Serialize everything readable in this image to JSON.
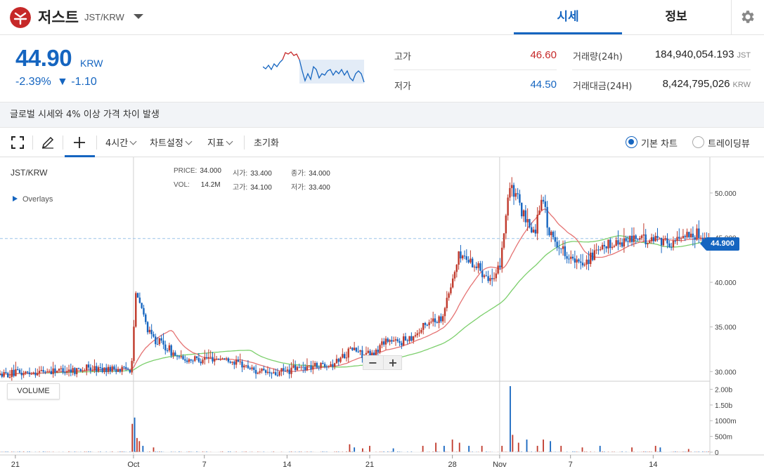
{
  "header": {
    "coin_name": "저스트",
    "pair": "JST/KRW",
    "tabs": [
      {
        "label": "시세",
        "active": true
      },
      {
        "label": "정보",
        "active": false
      }
    ]
  },
  "summary": {
    "price": "44.90",
    "unit": "KRW",
    "change_rate": "-2.39%",
    "change_amount": "▼ -1.10",
    "high_label": "고가",
    "high_value": "46.60",
    "low_label": "저가",
    "low_value": "44.50",
    "volume_label": "거래량(24h)",
    "volume_value": "184,940,054.193",
    "volume_unit": "JST",
    "trade_value_label": "거래대금(24H)",
    "trade_value_value": "8,424,795,026",
    "trade_value_unit": "KRW"
  },
  "notice": "글로벌 시세와 4% 이상 가격 차이 발생",
  "toolbar": {
    "interval": "4시간",
    "chart_settings": "차트설정",
    "indicators": "지표",
    "reset": "초기화",
    "basic_chart": "기본 차트",
    "tradingview": "트레이딩뷰"
  },
  "chart": {
    "pair": "JST/KRW",
    "overlays": "Overlays",
    "ohlc": {
      "price_label": "PRICE:",
      "price": "34.000",
      "open_label": "시가:",
      "open": "33.400",
      "close_label": "종가:",
      "close": "34.000",
      "vol_label": "VOL:",
      "vol": "14.2M",
      "high_label": "고가:",
      "high": "34.100",
      "low_label": "저가:",
      "low": "33.400"
    },
    "volume_button": "VOLUME",
    "zoom_minus": "−",
    "zoom_plus": "+",
    "last_price_tag": "44.900"
  },
  "colors": {
    "accent": "#1565c0",
    "up": "#c0392b",
    "down": "#1565c0",
    "ma_short": "#e57373",
    "ma_long": "#7ccf6c"
  },
  "chart_data": {
    "type": "candlestick",
    "price_axis": {
      "ylim": [
        29.0,
        54.0
      ],
      "ticks": [
        "30.000",
        "35.000",
        "40.000",
        "45.000",
        "50.000"
      ],
      "tick_values": [
        30,
        35,
        40,
        45,
        50
      ]
    },
    "volume_axis": {
      "ylim": [
        0,
        2.1
      ],
      "ticks": [
        "0",
        "500m",
        "1000m",
        "1.50b",
        "2.00b"
      ],
      "tick_values": [
        0,
        0.5,
        1.0,
        1.5,
        2.0
      ]
    },
    "x_ticks": [
      {
        "label": "21",
        "day": 0
      },
      {
        "label": "Oct",
        "day": 10
      },
      {
        "label": "7",
        "day": 16
      },
      {
        "label": "14",
        "day": 23
      },
      {
        "label": "21",
        "day": 30
      },
      {
        "label": "28",
        "day": 37
      },
      {
        "label": "Nov",
        "day": 41
      },
      {
        "label": "7",
        "day": 47
      },
      {
        "label": "14",
        "day": 54
      }
    ],
    "day_range": [
      -1.3,
      58.8
    ],
    "last_price": 44.9,
    "anchors": [
      [
        -1.3,
        29.6
      ],
      [
        3,
        30.1
      ],
      [
        6,
        30.3
      ],
      [
        9.8,
        30.3
      ],
      [
        10.2,
        38.5
      ],
      [
        10.6,
        37.5
      ],
      [
        11.3,
        34.2
      ],
      [
        12.5,
        33.0
      ],
      [
        14,
        31.3
      ],
      [
        16,
        31.5
      ],
      [
        17.5,
        31.5
      ],
      [
        19,
        30.9
      ],
      [
        20.5,
        30.0
      ],
      [
        22,
        29.7
      ],
      [
        23.5,
        30.3
      ],
      [
        25,
        30.6
      ],
      [
        27,
        31.0
      ],
      [
        28.5,
        32.6
      ],
      [
        29.5,
        31.9
      ],
      [
        30.3,
        31.8
      ],
      [
        31.3,
        33.6
      ],
      [
        32.3,
        33.2
      ],
      [
        34,
        34.3
      ],
      [
        35.2,
        35.8
      ],
      [
        36,
        35.8
      ],
      [
        36.7,
        38.7
      ],
      [
        37.6,
        43.2
      ],
      [
        38.6,
        42.3
      ],
      [
        39.6,
        41.2
      ],
      [
        40.6,
        40.0
      ],
      [
        41,
        41.8
      ],
      [
        41.8,
        50.6
      ],
      [
        42.5,
        49.4
      ],
      [
        43.2,
        46.6
      ],
      [
        44,
        45.6
      ],
      [
        44.6,
        50.2
      ],
      [
        45.2,
        45.3
      ],
      [
        46.3,
        43.7
      ],
      [
        47.5,
        42.0
      ],
      [
        48.3,
        42.4
      ],
      [
        49.3,
        43.3
      ],
      [
        50.5,
        44.3
      ],
      [
        51.5,
        44.6
      ],
      [
        52.5,
        45.0
      ],
      [
        53.5,
        44.6
      ],
      [
        54.5,
        45.1
      ],
      [
        55.5,
        44.1
      ],
      [
        56.5,
        45.4
      ],
      [
        57.5,
        45.4
      ],
      [
        58.3,
        45.0
      ],
      [
        58.8,
        44.9
      ]
    ],
    "volume_spikes": [
      [
        9.9,
        0.9
      ],
      [
        10.1,
        1.1
      ],
      [
        10.3,
        0.45
      ],
      [
        10.5,
        0.35
      ],
      [
        10.8,
        0.2
      ],
      [
        11.7,
        0.15
      ],
      [
        28.3,
        0.25
      ],
      [
        28.7,
        0.15
      ],
      [
        29.4,
        0.12
      ],
      [
        30.0,
        0.2
      ],
      [
        32.0,
        0.12
      ],
      [
        34.5,
        0.2
      ],
      [
        35.6,
        0.3
      ],
      [
        36.3,
        0.2
      ],
      [
        37.0,
        0.4
      ],
      [
        37.6,
        0.3
      ],
      [
        38.4,
        0.2
      ],
      [
        39.5,
        0.2
      ],
      [
        41.2,
        0.2
      ],
      [
        41.9,
        2.1
      ],
      [
        42.1,
        0.55
      ],
      [
        42.6,
        0.3
      ],
      [
        43.3,
        0.4
      ],
      [
        44.2,
        0.2
      ],
      [
        44.7,
        0.4
      ],
      [
        45.3,
        0.35
      ],
      [
        46.2,
        0.2
      ],
      [
        48.0,
        0.15
      ],
      [
        49.5,
        0.2
      ],
      [
        52.2,
        0.15
      ],
      [
        54.2,
        0.2
      ],
      [
        54.6,
        0.15
      ],
      [
        57.0,
        0.1
      ]
    ]
  }
}
